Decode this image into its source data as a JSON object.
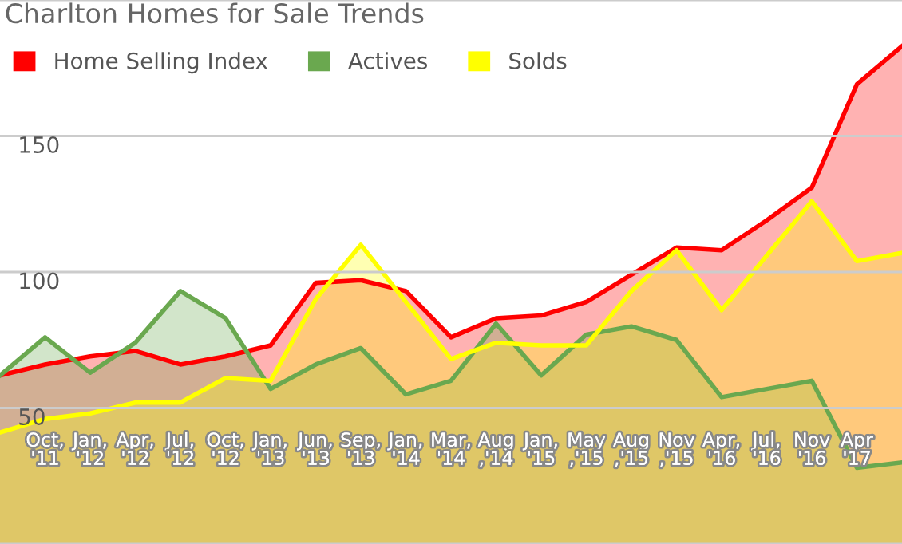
{
  "chart_data": {
    "type": "area",
    "title": "Charlton Homes for Sale Trends",
    "categories": [
      null,
      "Oct,\n'11",
      "Jan,\n'12",
      "Apr,\n'12",
      "Jul,\n'12",
      "Oct,\n'12",
      "Jan,\n'13",
      "Jun,\n'13",
      "Sep,\n'13",
      "Jan,\n'14",
      "Mar,\n'14",
      "Aug\n,'14",
      "Jan,\n'15",
      "May\n,'15",
      "Aug\n,'15",
      "Nov\n,'15",
      "Apr,\n'16",
      "Jul,\n'16",
      "Nov\n'16",
      "Apr\n'17",
      null
    ],
    "series": [
      {
        "name": "Home Selling Index",
        "color": "#ff0000",
        "values": [
          62,
          66,
          69,
          71,
          66,
          69,
          73,
          96,
          97,
          93,
          76,
          83,
          84,
          89,
          99,
          109,
          108,
          119,
          131,
          169,
          183
        ]
      },
      {
        "name": "Actives",
        "color": "#6aa84f",
        "values": [
          62,
          76,
          63,
          74,
          93,
          83,
          57,
          66,
          72,
          55,
          60,
          81,
          62,
          77,
          80,
          75,
          54,
          57,
          60,
          28,
          30
        ]
      },
      {
        "name": "Solds",
        "color": "#ffff00",
        "values": [
          41,
          46,
          48,
          52,
          52,
          61,
          60,
          90,
          110,
          89,
          68,
          74,
          73,
          73,
          93,
          108,
          86,
          106,
          126,
          104,
          107
        ]
      }
    ],
    "ylim": [
      0,
      200
    ],
    "yticks": [
      {
        "value": 0,
        "label": null
      },
      50,
      100,
      150,
      {
        "value": 200,
        "label": null
      }
    ],
    "grid": "y",
    "legend": "top left"
  }
}
